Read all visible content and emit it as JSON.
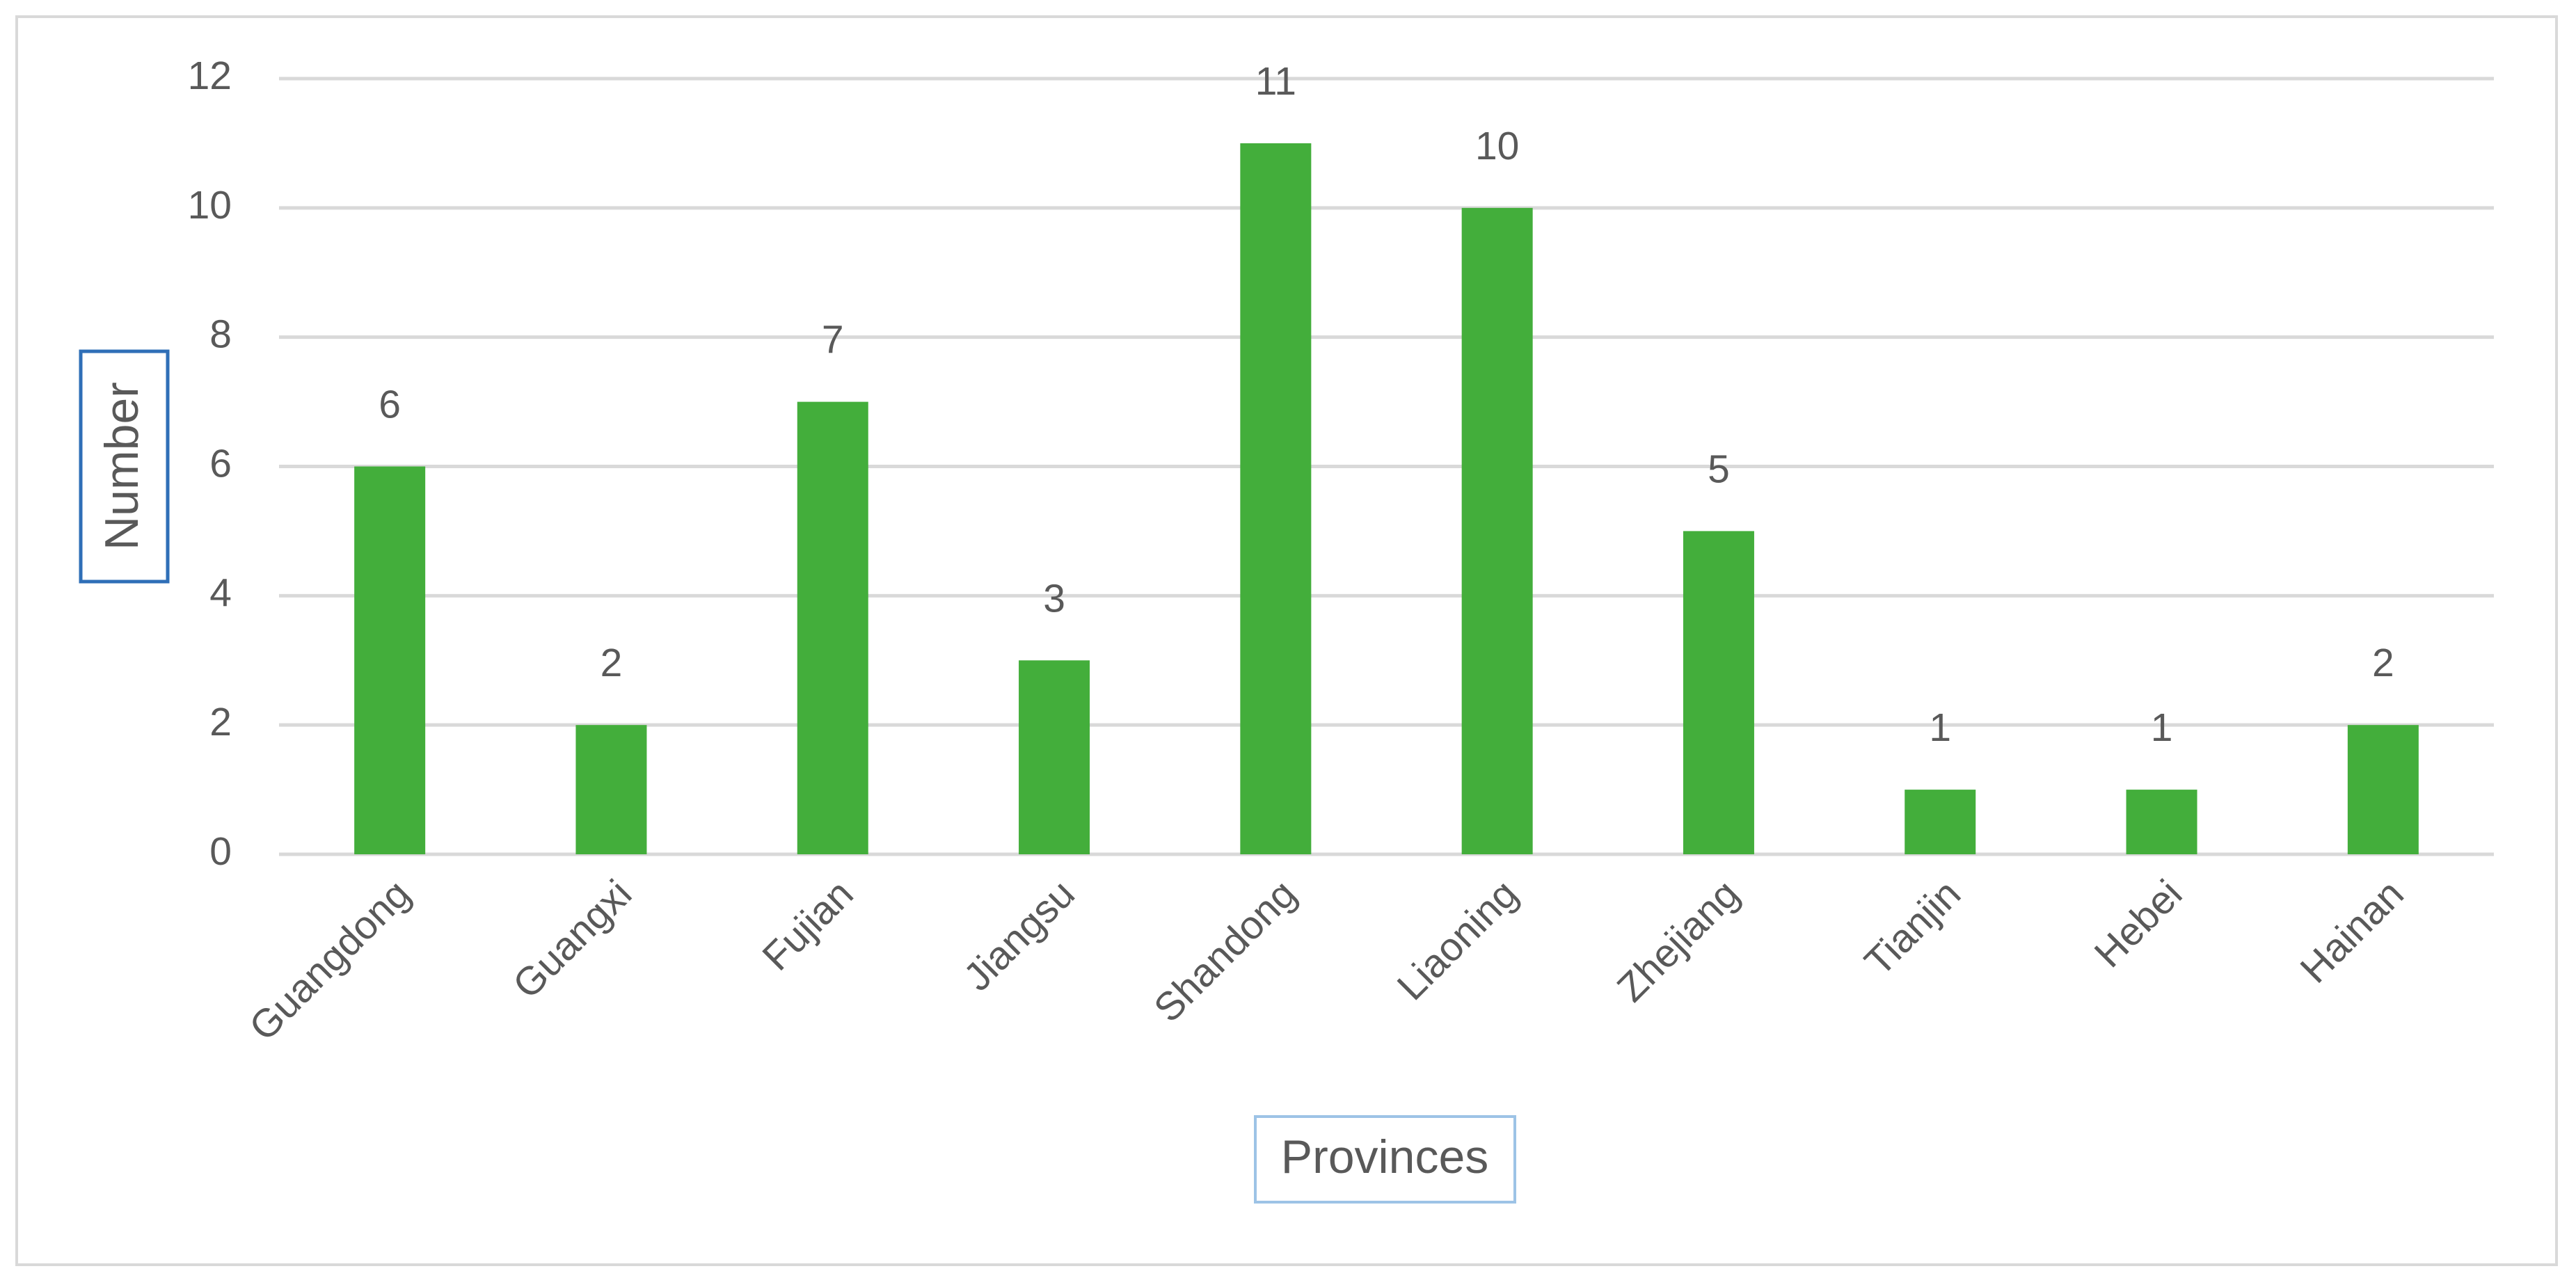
{
  "chart_data": {
    "type": "bar",
    "x_label": "Provinces",
    "y_label": "Number",
    "categories": [
      "Guangdong",
      "Guangxi",
      "Fujian",
      "Jiangsu",
      "Shandong",
      "Liaoning",
      "Zhejiang",
      "Tianjin",
      "Hebei",
      "Hainan"
    ],
    "values": [
      6,
      2,
      7,
      3,
      11,
      10,
      5,
      1,
      1,
      2
    ],
    "color": "#43ae3b",
    "ylim": [
      0,
      12
    ],
    "yticks": [
      0,
      2,
      4,
      6,
      8,
      10,
      12
    ],
    "grid": true,
    "data_labels": true
  }
}
